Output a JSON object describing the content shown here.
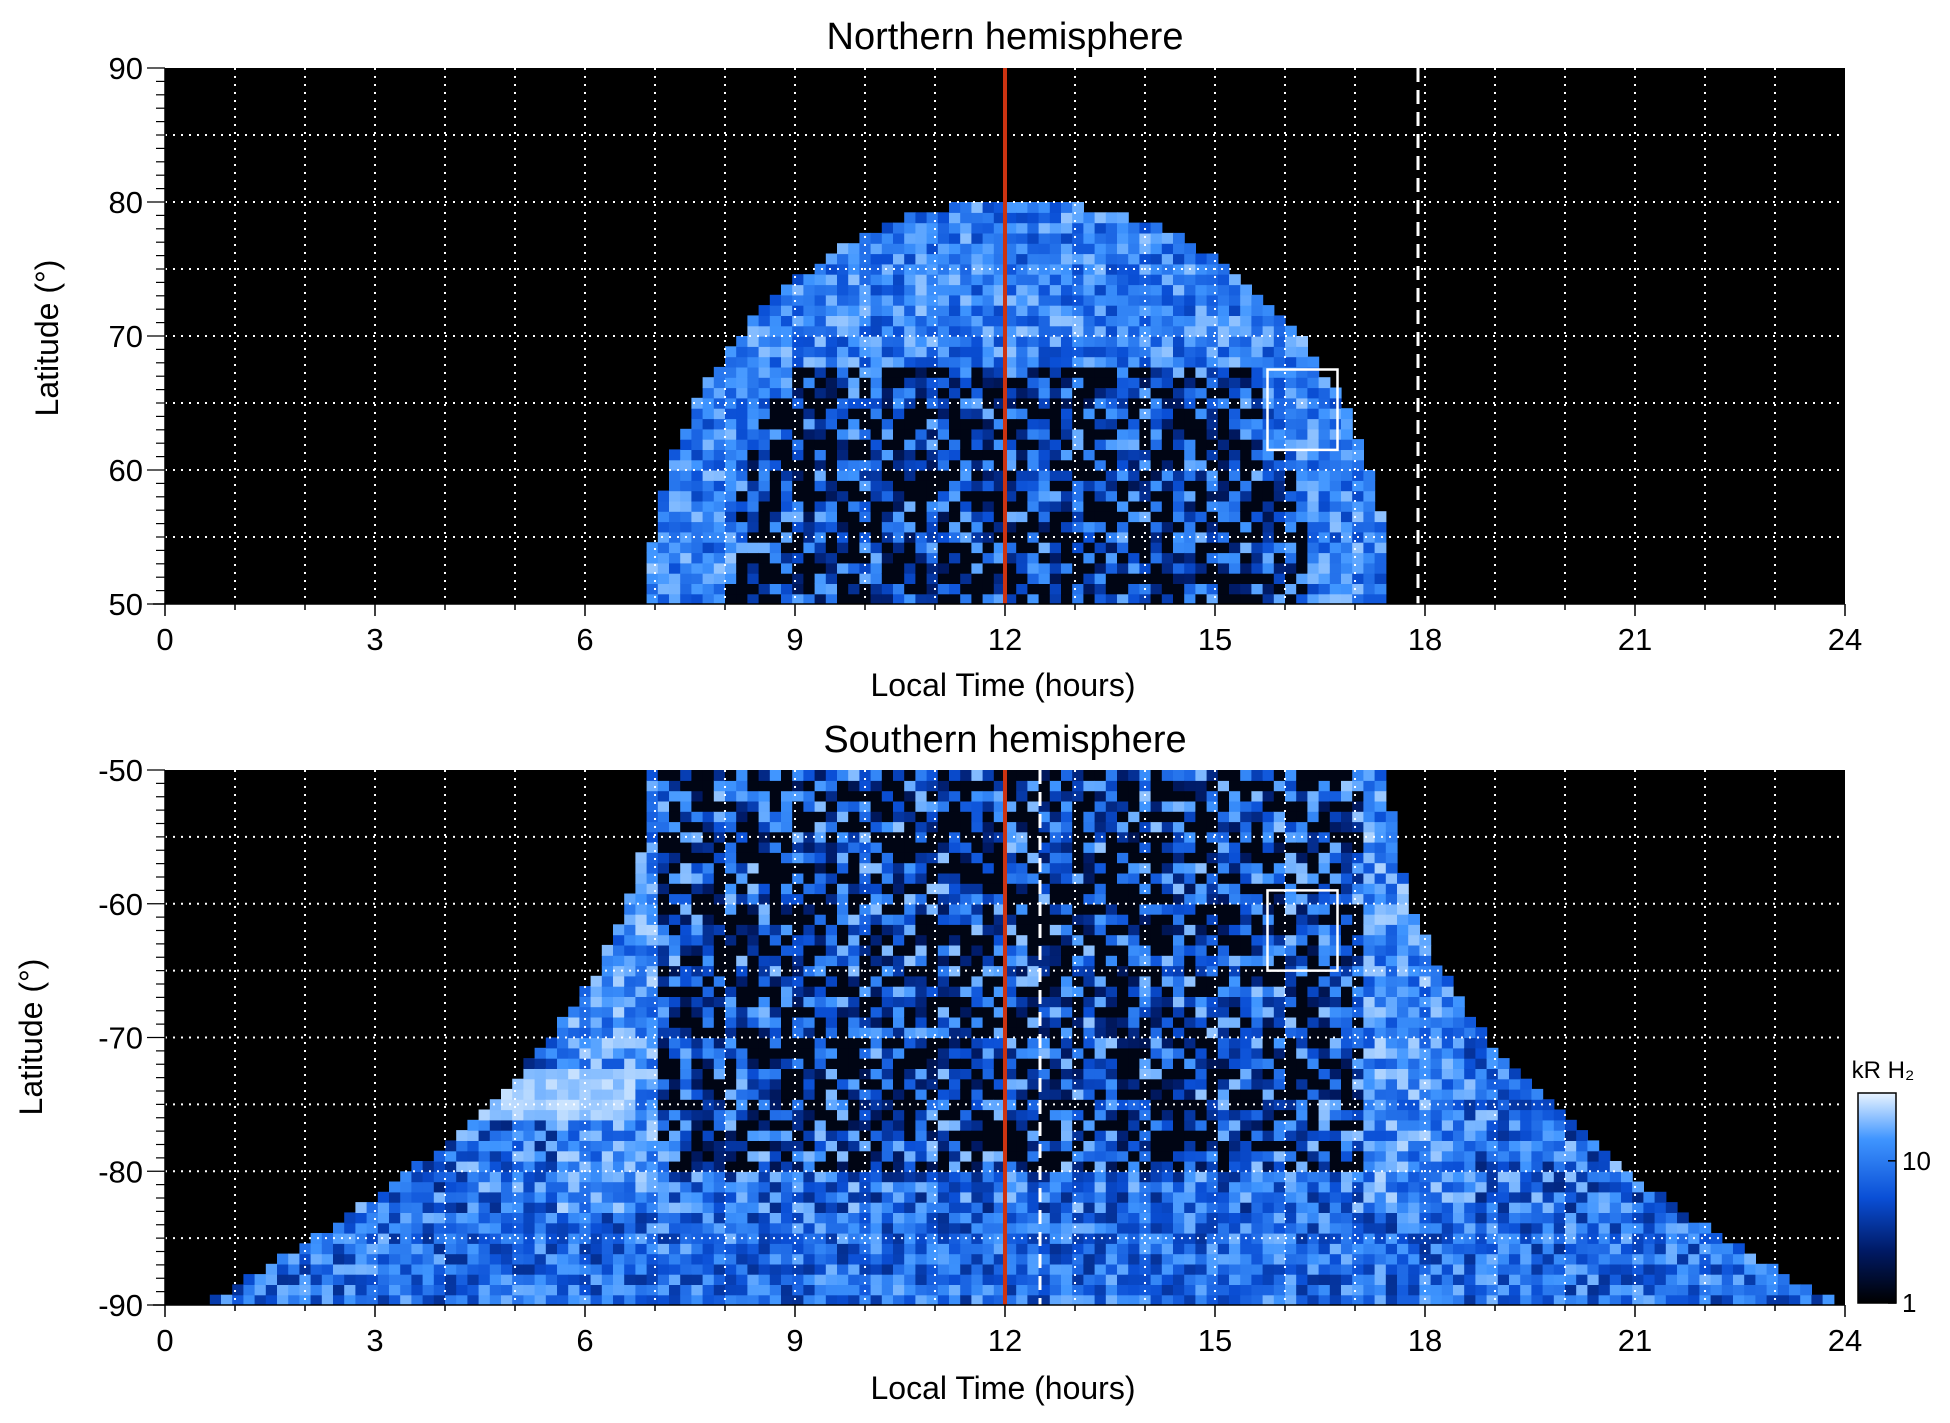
{
  "chart_data": [
    {
      "type": "heatmap",
      "title": "Northern hemisphere",
      "xlabel": "Local Time (hours)",
      "ylabel": "Latitude (°)",
      "xlim": [
        0,
        24
      ],
      "ylim": [
        50,
        90
      ],
      "xticks": [
        0,
        3,
        6,
        9,
        12,
        15,
        18,
        21,
        24
      ],
      "yticks": [
        50,
        60,
        70,
        80,
        90
      ],
      "grid": true,
      "background": "#000000",
      "colormap": [
        "#000000",
        "#001a66",
        "#0a4fd6",
        "#3f95ff",
        "#cfe6ff"
      ],
      "coverage": {
        "lat_min": 50,
        "lat_max": 80,
        "lt_center": 12.2,
        "lt_halfwidth_at_50": 5.15
      },
      "bright_band_lat": [
        68,
        80
      ],
      "red_line_lt": 12,
      "dashed_line_lt": 17.9,
      "box": {
        "lt": [
          15.75,
          16.75
        ],
        "lat": [
          61.5,
          67.5
        ]
      },
      "line_colors": {
        "red": "#cc3311",
        "white": "#ffffff"
      }
    },
    {
      "type": "heatmap",
      "title": "Southern hemisphere",
      "xlabel": "Local Time (hours)",
      "ylabel": "Latitude (°)",
      "xlim": [
        0,
        24
      ],
      "ylim": [
        -90,
        -50
      ],
      "xticks": [
        0,
        3,
        6,
        9,
        12,
        15,
        18,
        21,
        24
      ],
      "yticks": [
        -90,
        -80,
        -70,
        -60,
        -50
      ],
      "grid": true,
      "background": "#000000",
      "colormap": [
        "#000000",
        "#001a66",
        "#0a4fd6",
        "#3f95ff",
        "#cfe6ff"
      ],
      "red_line_lt": 12,
      "dashed_line_lt": 12.5,
      "box": {
        "lt": [
          15.75,
          16.75
        ],
        "lat": [
          -65,
          -59
        ]
      },
      "line_colors": {
        "red": "#cc3311",
        "white": "#ffffff"
      },
      "colorbar": {
        "label": "kR H₂",
        "ticks": [
          1,
          10
        ],
        "range": [
          1,
          30
        ],
        "scale": "log"
      }
    }
  ]
}
